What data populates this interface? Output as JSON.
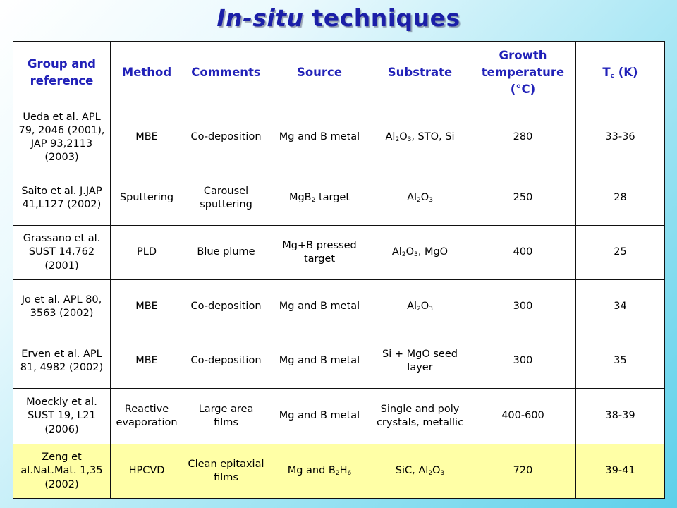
{
  "title": {
    "italic": "In-situ",
    "rest": " techniques"
  },
  "colors": {
    "header_text": "#2121b8",
    "title": "#1b1fa8",
    "highlight_row": "#ffffa6"
  },
  "headers": {
    "group": "Group and reference",
    "method": "Method",
    "comments": "Comments",
    "source": "Source",
    "substrate": "Substrate",
    "growth": "Growth temperature (°C)",
    "tc_main": "T",
    "tc_sub": "c",
    "tc_unit": " (K)"
  },
  "rows": [
    {
      "group": "Ueda et al. APL 79, 2046 (2001), JAP 93,2113 (2003)",
      "method": "MBE",
      "comments": "Co-deposition",
      "source": "Mg and B metal",
      "substrate": [
        [
          "Al",
          ""
        ],
        [
          "2",
          "sub"
        ],
        [
          "O",
          ""
        ],
        [
          "3",
          "sub"
        ],
        [
          ", STO, Si",
          ""
        ]
      ],
      "growth": "280",
      "tc": "33-36",
      "highlight": false
    },
    {
      "group": "Saito et al. J.JAP 41,L127 (2002)",
      "method": "Sputtering",
      "comments": "Carousel sputtering",
      "source_parts": [
        [
          "MgB",
          ""
        ],
        [
          "2",
          "sub"
        ],
        [
          " target",
          ""
        ]
      ],
      "substrate": [
        [
          "Al",
          ""
        ],
        [
          "2",
          "sub"
        ],
        [
          "O",
          ""
        ],
        [
          "3",
          "sub"
        ]
      ],
      "growth": "250",
      "tc": "28",
      "highlight": false
    },
    {
      "group": "Grassano et al. SUST 14,762 (2001)",
      "method": "PLD",
      "comments": "Blue plume",
      "source": "Mg+B pressed target",
      "substrate": [
        [
          "Al",
          ""
        ],
        [
          "2",
          "sub"
        ],
        [
          "O",
          ""
        ],
        [
          "3",
          "sub"
        ],
        [
          ", MgO",
          ""
        ]
      ],
      "growth": "400",
      "tc": "25",
      "highlight": false
    },
    {
      "group": "Jo et al. APL 80, 3563 (2002)",
      "method": "MBE",
      "comments": "Co-deposition",
      "source": "Mg and B metal",
      "substrate": [
        [
          "Al",
          ""
        ],
        [
          "2",
          "sub"
        ],
        [
          "O",
          ""
        ],
        [
          "3",
          "sub"
        ]
      ],
      "growth": "300",
      "tc": "34",
      "highlight": false
    },
    {
      "group": "Erven et al. APL 81, 4982 (2002)",
      "method": "MBE",
      "comments": "Co-deposition",
      "source": "Mg and B metal",
      "substrate": [
        [
          "Si + MgO seed layer",
          ""
        ]
      ],
      "growth": "300",
      "tc": "35",
      "highlight": false
    },
    {
      "group": "Moeckly et al. SUST 19, L21 (2006)",
      "method": "Reactive evaporation",
      "comments": "Large area films",
      "source": "Mg and B metal",
      "substrate": [
        [
          "Single and poly crystals, metallic",
          ""
        ]
      ],
      "growth": "400-600",
      "tc": "38-39",
      "highlight": false
    },
    {
      "group": "Zeng et al.Nat.Mat. 1,35 (2002)",
      "method": "HPCVD",
      "comments": "Clean epitaxial films",
      "source_parts": [
        [
          "Mg and B",
          ""
        ],
        [
          "2",
          "sub"
        ],
        [
          "H",
          ""
        ],
        [
          "6",
          "sub"
        ]
      ],
      "substrate": [
        [
          "SiC, Al",
          ""
        ],
        [
          "2",
          "sub"
        ],
        [
          "O",
          ""
        ],
        [
          "3",
          "sub"
        ]
      ],
      "growth": "720",
      "tc": "39-41",
      "highlight": true
    }
  ]
}
